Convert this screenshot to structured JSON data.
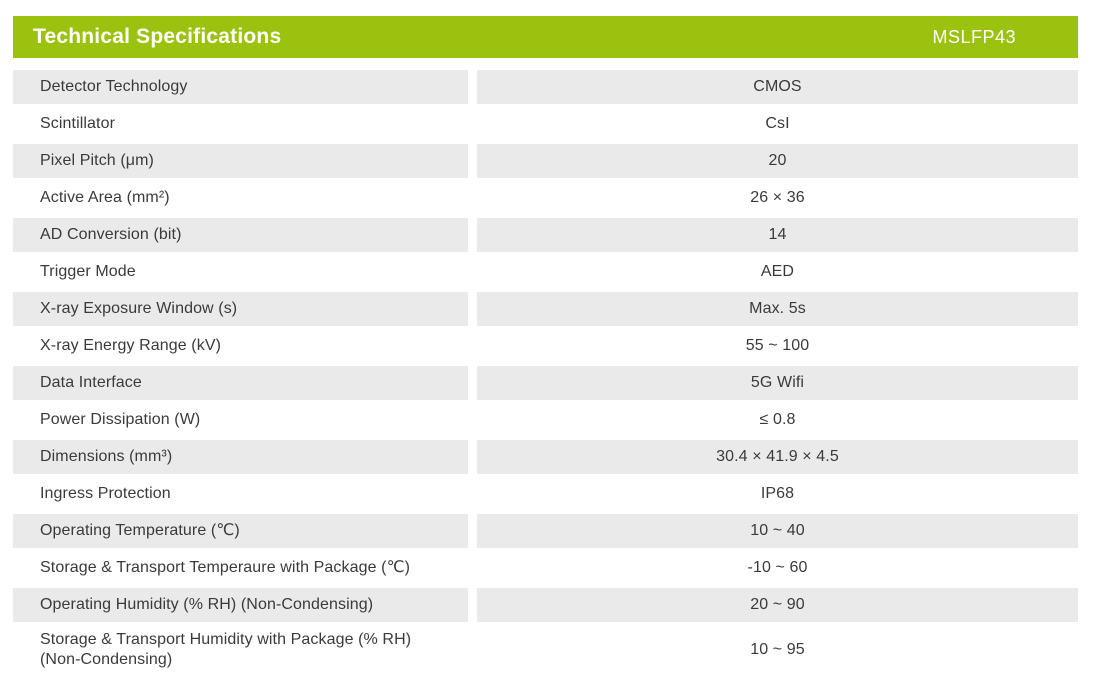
{
  "header": {
    "title": "Technical Specifications",
    "model": "MSLFP43"
  },
  "colors": {
    "accent_green": "#9BC20E",
    "row_alt_bg": "#EAEAEA",
    "text": "#3A3A3A",
    "header_text": "#FFFFFF"
  },
  "table": {
    "rows": [
      {
        "label": "Detector Technology",
        "value": "CMOS"
      },
      {
        "label": "Scintillator",
        "value": "CsI"
      },
      {
        "label": "Pixel Pitch (μm)",
        "value": "20"
      },
      {
        "label": "Active Area (mm²)",
        "value": "26 × 36"
      },
      {
        "label": "AD Conversion (bit)",
        "value": "14"
      },
      {
        "label": "Trigger Mode",
        "value": "AED"
      },
      {
        "label": "X-ray Exposure Window (s)",
        "value": "Max. 5s"
      },
      {
        "label": "X-ray Energy Range (kV)",
        "value": "55 ~ 100"
      },
      {
        "label": "Data Interface",
        "value": "5G Wifi"
      },
      {
        "label": "Power Dissipation (W)",
        "value": "≤ 0.8"
      },
      {
        "label": "Dimensions (mm³)",
        "value": "30.4 × 41.9 × 4.5"
      },
      {
        "label": "Ingress Protection",
        "value": "IP68"
      },
      {
        "label": "Operating Temperature (℃)",
        "value": "10 ~ 40"
      },
      {
        "label": "Storage & Transport Temperaure with Package (℃)",
        "value": "-10 ~ 60"
      },
      {
        "label": "Operating Humidity (% RH) (Non-Condensing)",
        "value": "20 ~ 90"
      },
      {
        "label": "Storage & Transport Humidity with Package (% RH)\n(Non-Condensing)",
        "value": "10 ~ 95"
      }
    ]
  }
}
